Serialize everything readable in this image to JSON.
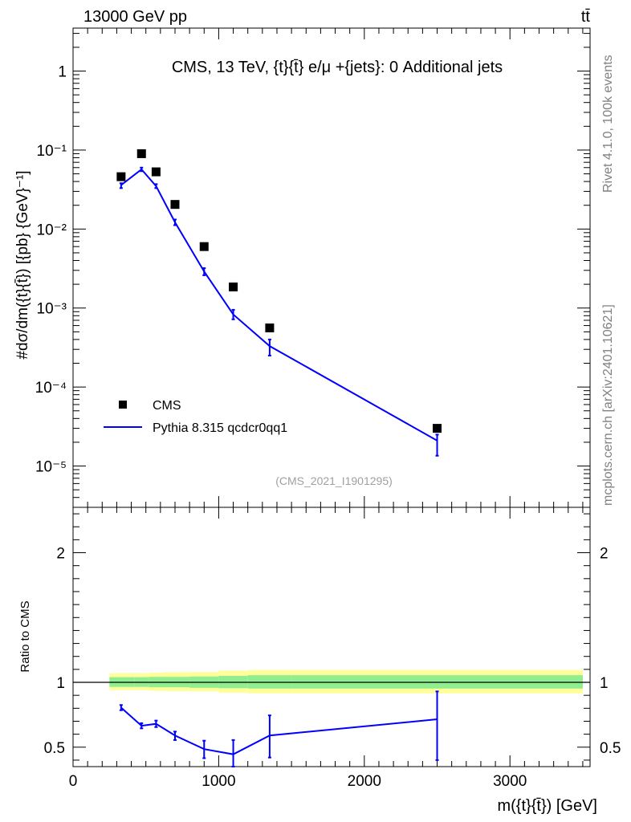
{
  "header": {
    "energy_label": "13000 GeV pp",
    "process_label": "tt̄"
  },
  "side_labels": {
    "rivet": "Rivet 4.1.0,  100k events",
    "source": "mcplots.cern.ch [arXiv:2401.10621]"
  },
  "chart_data": [
    {
      "type": "scatter",
      "panel": "main",
      "title": "CMS, 13 TeV, {t}{t̄} e/μ +{jets}: 0 Additional jets",
      "analysis_tag": "(CMS_2021_I1901295)",
      "ylabel": "#dσ/dm({t}{t̄}) [{pb} {GeV}⁻¹]",
      "yscale": "log",
      "ylim": [
        3e-06,
        3.5
      ],
      "xlim": [
        0,
        3550
      ],
      "y_ticks": [
        {
          "value": 1,
          "label": "1"
        },
        {
          "value": 0.1,
          "label": "10⁻¹"
        },
        {
          "value": 0.01,
          "label": "10⁻²"
        },
        {
          "value": 0.001,
          "label": "10⁻³"
        },
        {
          "value": 0.0001,
          "label": "10⁻⁴"
        },
        {
          "value": 1e-05,
          "label": "10⁻⁵"
        }
      ],
      "legend": [
        "CMS",
        "Pythia 8.315 qcdcr0qq1"
      ],
      "legend_position": "bottom-left",
      "series": [
        {
          "name": "CMS",
          "style": "markers",
          "color": "#000000",
          "x": [
            330,
            470,
            570,
            700,
            900,
            1100,
            1350,
            2500
          ],
          "y": [
            0.046,
            0.09,
            0.053,
            0.0205,
            0.006,
            0.00185,
            0.00056,
            3e-05
          ]
        },
        {
          "name": "Pythia 8.315 qcdcr0qq1",
          "style": "line",
          "color": "#0000ff",
          "x": [
            330,
            470,
            570,
            700,
            900,
            1100,
            1350,
            2500
          ],
          "y": [
            0.036,
            0.057,
            0.035,
            0.0122,
            0.0029,
            0.00083,
            0.00033,
            2.1e-05
          ],
          "err_lo": [
            0.033,
            0.054,
            0.033,
            0.0112,
            0.0026,
            0.00072,
            0.00025,
            1.35e-05
          ],
          "err_hi": [
            0.038,
            0.06,
            0.037,
            0.0132,
            0.0032,
            0.00095,
            0.0004,
            2.5e-05
          ]
        }
      ]
    },
    {
      "type": "line",
      "panel": "ratio",
      "ylabel": "Ratio to CMS",
      "xlabel": "m({t}{t̄}) [GeV]",
      "ylim": [
        0.35,
        2.35
      ],
      "xlim": [
        0,
        3550
      ],
      "x_ticks": [
        0,
        1000,
        2000,
        3000
      ],
      "y_ticks": [
        0.5,
        1,
        2
      ],
      "reference_line": 1,
      "bands": {
        "edges": [
          250,
          420,
          520,
          620,
          800,
          1000,
          1200,
          1500,
          3500
        ],
        "inner": [
          [
            0.965,
            1.04
          ],
          [
            0.965,
            1.04
          ],
          [
            0.962,
            1.042
          ],
          [
            0.962,
            1.042
          ],
          [
            0.958,
            1.045
          ],
          [
            0.955,
            1.05
          ],
          [
            0.952,
            1.055
          ],
          [
            0.952,
            1.055
          ]
        ],
        "outer": [
          [
            0.94,
            1.07
          ],
          [
            0.94,
            1.07
          ],
          [
            0.935,
            1.075
          ],
          [
            0.933,
            1.078
          ],
          [
            0.93,
            1.08
          ],
          [
            0.92,
            1.09
          ],
          [
            0.915,
            1.095
          ],
          [
            0.915,
            1.095
          ]
        ],
        "inner_color": "#90ee90",
        "outer_color": "#ffff99"
      },
      "series": [
        {
          "name": "Pythia 8.315 qcdcr0qq1",
          "color": "#0000ff",
          "x": [
            330,
            470,
            570,
            700,
            900,
            1100,
            1350,
            2500
          ],
          "y": [
            0.805,
            0.665,
            0.68,
            0.59,
            0.485,
            0.445,
            0.59,
            0.715
          ],
          "err_lo": [
            0.785,
            0.645,
            0.655,
            0.555,
            0.415,
            0.335,
            0.42,
            0.4
          ],
          "err_hi": [
            0.825,
            0.685,
            0.705,
            0.62,
            0.55,
            0.555,
            0.745,
            0.93
          ]
        }
      ]
    }
  ]
}
